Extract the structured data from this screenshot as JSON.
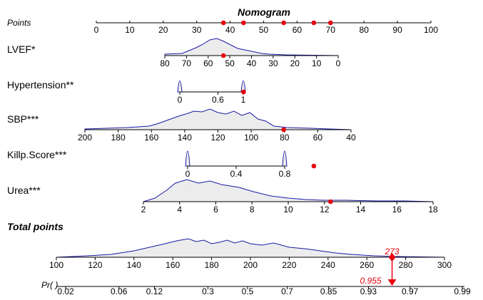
{
  "chart_data": {
    "type": "nomogram",
    "title": "Nomogram",
    "points_axis": {
      "label": "Points",
      "ticks": [
        "0",
        "10",
        "20",
        "30",
        "40",
        "50",
        "60",
        "70",
        "80",
        "90",
        "100"
      ],
      "range": [
        0,
        100
      ]
    },
    "variables": [
      {
        "name": "LVEF*",
        "tick_values": [
          80,
          70,
          60,
          50,
          40,
          30,
          20,
          10,
          0
        ],
        "ticks": [
          "80",
          "70",
          "60",
          "50",
          "40",
          "30",
          "20",
          "10",
          "0"
        ],
        "selected_points": 38
      },
      {
        "name": "Hypertension**",
        "tick_values": [
          0,
          0.6,
          1
        ],
        "ticks": [
          "0",
          "0.6",
          "1"
        ],
        "selected_points": 44
      },
      {
        "name": "SBP***",
        "tick_values": [
          200,
          180,
          160,
          140,
          120,
          100,
          80,
          60,
          40
        ],
        "ticks": [
          "200",
          "180",
          "160",
          "140",
          "120",
          "100",
          "80",
          "60",
          "40"
        ],
        "selected_points": 56
      },
      {
        "name": "Killp.Score***",
        "tick_values": [
          0,
          0.4,
          0.8
        ],
        "ticks": [
          "0",
          "0.4",
          "0.8"
        ],
        "selected_points": 65
      },
      {
        "name": "Urea***",
        "tick_values": [
          2,
          4,
          6,
          8,
          10,
          12,
          14,
          16,
          18
        ],
        "ticks": [
          "2",
          "4",
          "6",
          "8",
          "10",
          "12",
          "14",
          "16",
          "18"
        ],
        "selected_points": 70
      }
    ],
    "total_points": {
      "label": "Total points",
      "ticks": [
        "100",
        "120",
        "140",
        "160",
        "180",
        "200",
        "220",
        "240",
        "260",
        "280",
        "300"
      ],
      "range": [
        100,
        300
      ],
      "value": 273,
      "value_label": "273"
    },
    "probability": {
      "label": "Pr( )",
      "ticks": [
        "0.02",
        "0.06",
        "0.12",
        "0.3",
        "0.5",
        "0.7",
        "0.85",
        "0.93",
        "0.97",
        "0.99"
      ],
      "value": 0.955,
      "value_label": "0.955"
    }
  }
}
